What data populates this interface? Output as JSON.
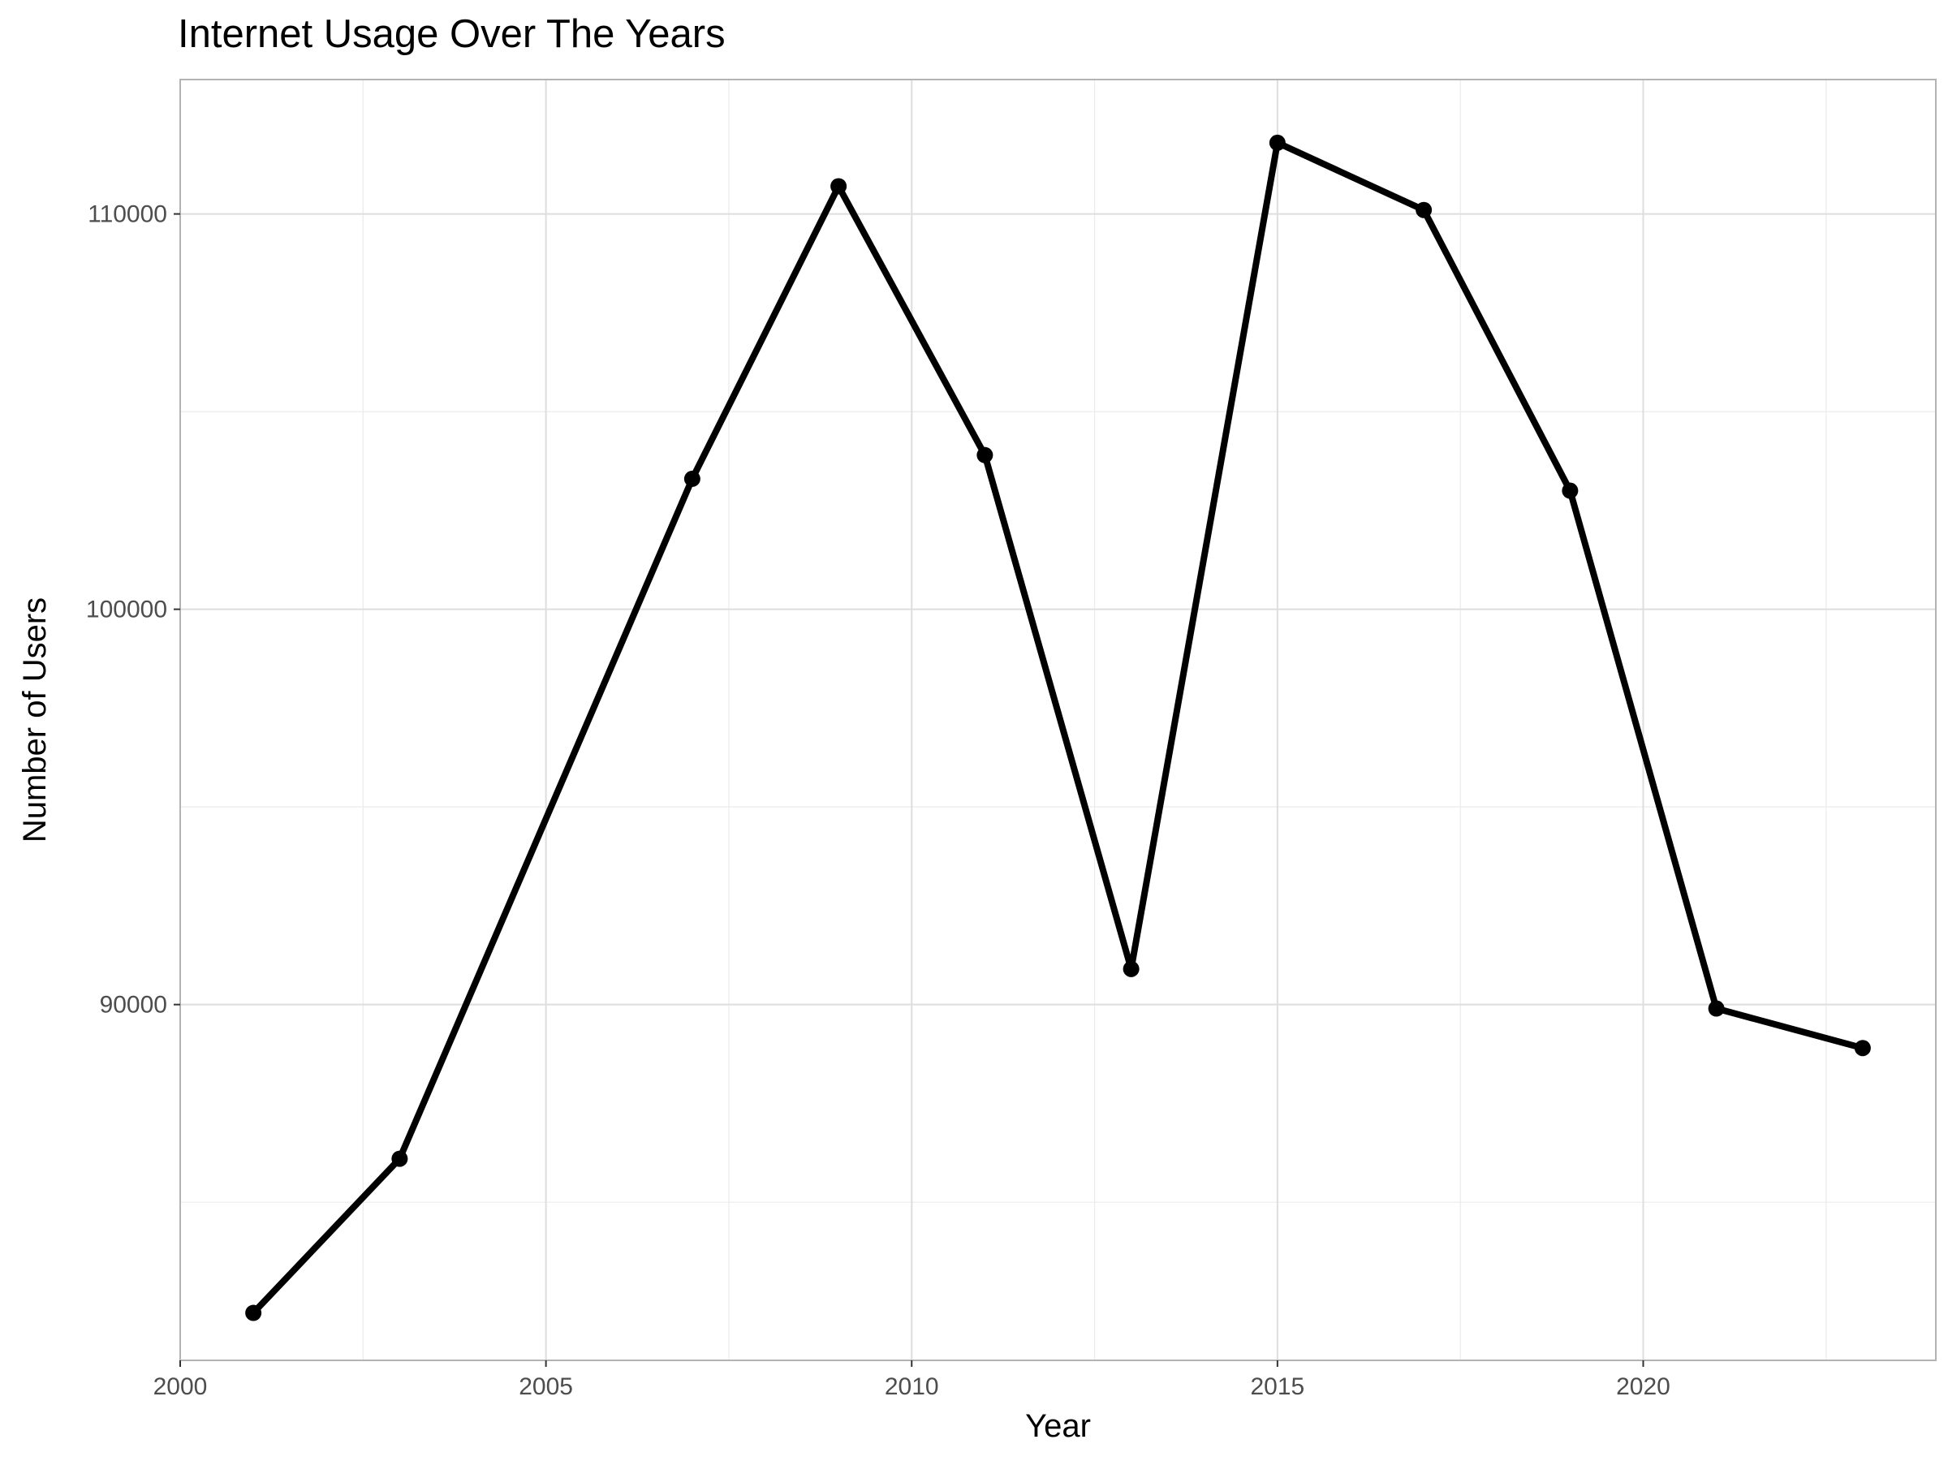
{
  "chart_data": {
    "type": "line",
    "title": "Internet Usage Over The Years",
    "xlabel": "Year",
    "ylabel": "Number of Users",
    "x": [
      2001,
      2003,
      2007,
      2009,
      2011,
      2013,
      2015,
      2017,
      2019,
      2021,
      2023
    ],
    "series": [
      {
        "values": [
          82200,
          86100,
          103300,
          110700,
          103900,
          90900,
          111800,
          110100,
          103000,
          89900,
          88900
        ]
      }
    ],
    "xlim": [
      2000,
      2024
    ],
    "ylim": [
      81000,
      113400
    ],
    "xticks": [
      2000,
      2005,
      2010,
      2015,
      2020
    ],
    "yticks": [
      90000,
      100000,
      110000
    ],
    "xtick_labels": [
      "2000",
      "2005",
      "2010",
      "2015",
      "2020"
    ],
    "ytick_labels": [
      "90000",
      "100000",
      "110000"
    ],
    "grid": true,
    "line_color": "#000000",
    "grid_color": "#ebebeb",
    "panel_border_color": "#b3b3b3"
  }
}
